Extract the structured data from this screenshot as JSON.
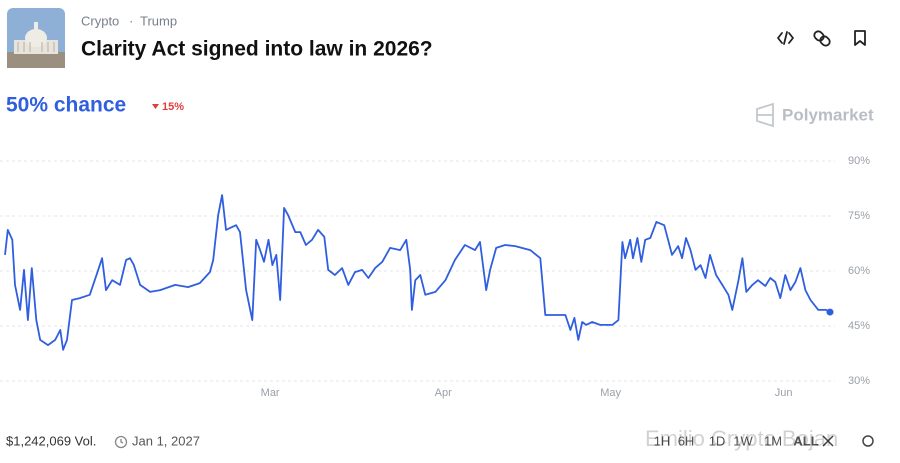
{
  "header": {
    "category": "Crypto",
    "tag": "Trump",
    "title": "Clarity Act signed into law in 2026?"
  },
  "chance": "50% chance",
  "change": "15%",
  "brand": "Polymarket",
  "footer": {
    "volume": "$1,242,069 Vol.",
    "end_date": "Jan 1, 2027",
    "ranges": [
      "1H",
      "6H",
      "1D",
      "1W",
      "1M",
      "ALL"
    ]
  },
  "watermark": "Emilio Crypto Bojan",
  "chart_data": {
    "type": "line",
    "color": "#2f5fe0",
    "grid": true,
    "xlim": [
      12.5,
      160.3
    ],
    "ylim": [
      30,
      90
    ],
    "xticks": [
      {
        "value": 60,
        "label": "Mar"
      },
      {
        "value": 91,
        "label": "Apr"
      },
      {
        "value": 121,
        "label": "May"
      },
      {
        "value": 152,
        "label": "Jun"
      }
    ],
    "yticks": [
      {
        "value": 30,
        "label": "30%"
      },
      {
        "value": 45,
        "label": "45%"
      },
      {
        "value": 60,
        "label": "60%"
      },
      {
        "value": 75,
        "label": "75%"
      },
      {
        "value": 90,
        "label": "90%"
      }
    ],
    "x": [
      12.5,
      13.0,
      13.8,
      14.3,
      15.2,
      15.9,
      16.6,
      17.3,
      18.1,
      18.8,
      20.2,
      21.5,
      22.4,
      22.9,
      23.6,
      24.5,
      25.9,
      27.7,
      29.2,
      29.9,
      30.6,
      31.7,
      33.1,
      34.2,
      34.9,
      35.6,
      36.7,
      38.5,
      40.3,
      43.0,
      45.3,
      47.4,
      49.2,
      49.8,
      50.7,
      51.4,
      52.1,
      52.8,
      53.9,
      54.6,
      55.7,
      56.8,
      57.5,
      58.2,
      58.9,
      59.7,
      60.4,
      61.1,
      61.8,
      62.5,
      63.2,
      64.5,
      65.4,
      66.4,
      67.5,
      68.6,
      69.7,
      70.4,
      71.6,
      72.9,
      74.0,
      75.2,
      76.5,
      77.6,
      78.8,
      80.1,
      81.5,
      83.3,
      84.4,
      85.1,
      85.4,
      86.0,
      86.9,
      87.8,
      89.6,
      91.4,
      93.1,
      94.9,
      96.7,
      97.6,
      98.7,
      99.4,
      100.5,
      102.1,
      103.9,
      106.6,
      108.4,
      109.3,
      111.1,
      112.9,
      113.8,
      114.5,
      115.2,
      115.9,
      116.6,
      117.7,
      119.1,
      121.3,
      122.4,
      123.1,
      123.6,
      124.5,
      125.0,
      125.8,
      126.5,
      127.2,
      128.1,
      129.2,
      130.6,
      131.3,
      132.0,
      133.1,
      133.8,
      134.5,
      135.3,
      136.2,
      137.1,
      138.0,
      138.8,
      139.9,
      141.0,
      142.1,
      142.8,
      143.9,
      144.6,
      145.3,
      146.4,
      147.4,
      148.7,
      149.6,
      150.5,
      151.4,
      152.3,
      153.2,
      154.1,
      155.0,
      155.9,
      156.8,
      158.2,
      159.6,
      160.3
    ],
    "values": [
      64.4,
      71.2,
      68.5,
      56.2,
      49.4,
      60.3,
      46.6,
      60.8,
      46.6,
      41.2,
      39.8,
      41.2,
      43.9,
      38.5,
      41.2,
      52.1,
      52.6,
      53.5,
      60.3,
      63.5,
      54.8,
      57.5,
      56.2,
      63.0,
      63.5,
      61.6,
      56.2,
      54.3,
      54.8,
      56.2,
      55.6,
      56.7,
      59.7,
      63.0,
      75.3,
      80.7,
      71.2,
      71.7,
      72.5,
      70.6,
      54.8,
      46.6,
      68.5,
      65.7,
      62.5,
      68.5,
      61.6,
      64.4,
      52.1,
      77.2,
      75.3,
      70.6,
      70.6,
      67.1,
      68.5,
      71.2,
      69.3,
      60.3,
      58.9,
      60.8,
      56.2,
      59.7,
      60.3,
      58.1,
      60.8,
      62.5,
      66.3,
      65.7,
      68.5,
      60.3,
      49.4,
      57.5,
      58.9,
      53.5,
      54.3,
      57.5,
      63.0,
      67.1,
      65.7,
      67.9,
      54.8,
      60.3,
      66.3,
      67.1,
      66.8,
      65.7,
      63.5,
      48.0,
      48.0,
      48.0,
      43.9,
      47.2,
      41.2,
      46.1,
      45.3,
      46.1,
      45.3,
      45.3,
      46.6,
      67.9,
      63.5,
      68.5,
      63.5,
      69.0,
      62.5,
      68.5,
      69.0,
      73.4,
      72.5,
      68.5,
      64.4,
      66.8,
      63.5,
      69.0,
      65.7,
      60.3,
      61.6,
      58.1,
      64.4,
      58.9,
      56.2,
      53.5,
      49.4,
      57.5,
      63.5,
      54.3,
      56.2,
      57.5,
      55.9,
      58.1,
      57.0,
      52.6,
      58.9,
      54.8,
      57.0,
      60.8,
      54.8,
      52.1,
      49.4,
      49.4,
      48.8
    ]
  }
}
